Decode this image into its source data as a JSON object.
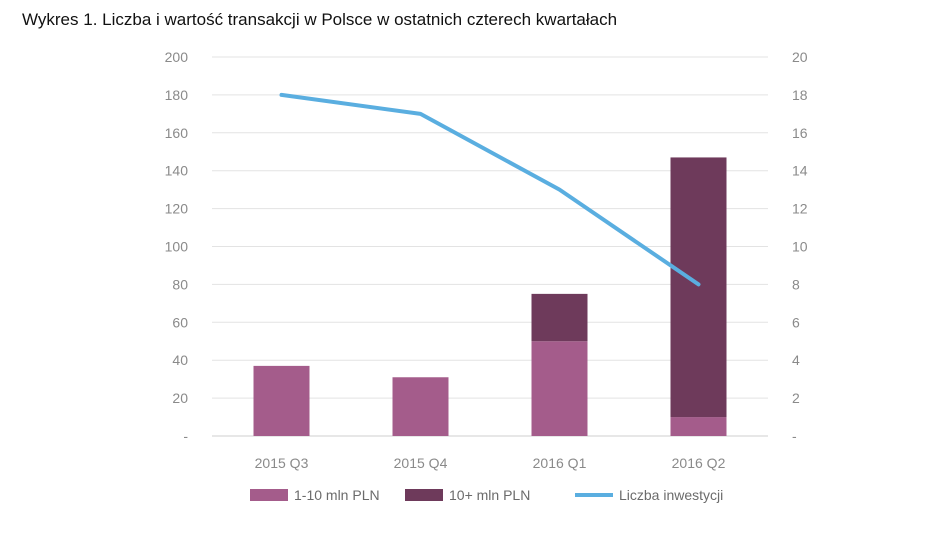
{
  "chart_data": {
    "type": "bar",
    "title": "Wykres 1. Liczba i wartość transakcji w Polsce w ostatnich czterech kwartałach",
    "categories": [
      "2015 Q3",
      "2015 Q4",
      "2016 Q1",
      "2016 Q2"
    ],
    "series": [
      {
        "name": "1-10 mln PLN",
        "kind": "bar",
        "axis": "left",
        "color": "#a45c8b",
        "values": [
          37,
          31,
          50,
          10
        ]
      },
      {
        "name": "10+ mln PLN",
        "kind": "bar",
        "axis": "left",
        "color": "#6e3a5b",
        "values": [
          0,
          0,
          25,
          137
        ]
      },
      {
        "name": "Liczba inwestycji",
        "kind": "line",
        "axis": "right",
        "color": "#5aaee0",
        "values": [
          18,
          17,
          13,
          8
        ]
      }
    ],
    "y_left": {
      "ylim": [
        0,
        200
      ],
      "ticks": [
        "-",
        "20",
        "40",
        "60",
        "80",
        "100",
        "120",
        "140",
        "160",
        "180",
        "200"
      ]
    },
    "y_right": {
      "ylim": [
        0,
        20
      ],
      "ticks": [
        "-",
        "2",
        "4",
        "6",
        "8",
        "10",
        "12",
        "14",
        "16",
        "18",
        "20"
      ]
    },
    "xlabel": "",
    "ylabel": "",
    "grid": true,
    "legend": "bottom"
  }
}
